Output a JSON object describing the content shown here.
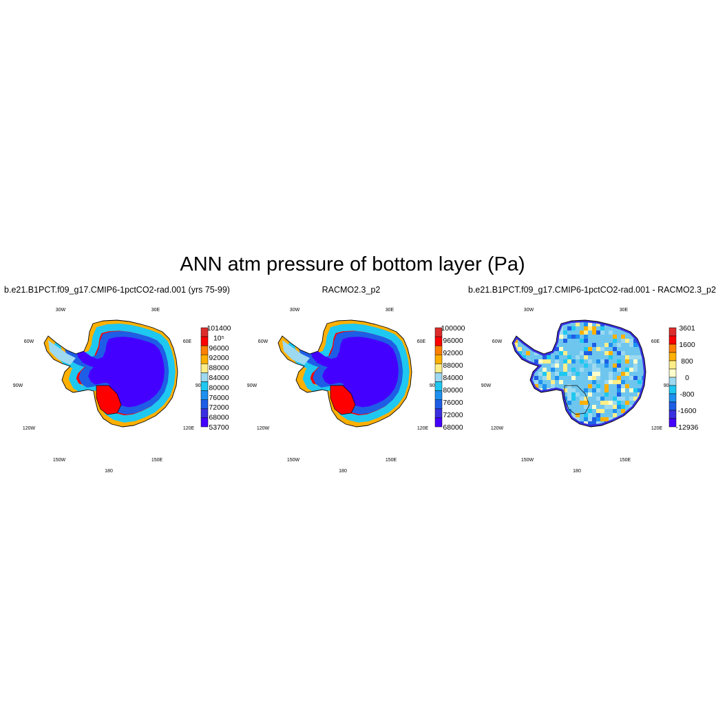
{
  "title": "ANN atm pressure of bottom layer (Pa)",
  "panels": [
    {
      "title": "b.e21.B1PCT.f09_g17.CMIP6-1pctCO2-rad.001 (yrs 75-99)",
      "kind": "field",
      "colorbar": {
        "colors": [
          "#dd2c2c",
          "#ff0000",
          "#ff7f00",
          "#ffb000",
          "#ffee88",
          "#9dd9f0",
          "#1ec8f0",
          "#1e90f0",
          "#1e5ee6",
          "#3a2fe0",
          "#4400ff"
        ],
        "labels": [
          "101400",
          "10⁵",
          "96000",
          "92000",
          "88000",
          "84000",
          "80000",
          "76000",
          "72000",
          "68000",
          "53700"
        ]
      }
    },
    {
      "title": "RACMO2.3_p2",
      "kind": "field",
      "colorbar": {
        "colors": [
          "#dd2c2c",
          "#ff0000",
          "#ff7f00",
          "#ffb000",
          "#ffee88",
          "#9dd9f0",
          "#1ec8f0",
          "#1e90f0",
          "#1e5ee6",
          "#3a2fe0",
          "#4400ff"
        ],
        "labels": [
          "100000",
          "96000",
          "92000",
          "88000",
          "84000",
          "80000",
          "76000",
          "72000",
          "68000"
        ]
      }
    },
    {
      "title": "b.e21.B1PCT.f09_g17.CMIP6-1pctCO2-rad.001 - RACMO2.3_p2",
      "kind": "difference",
      "colorbar": {
        "colors": [
          "#dd2c2c",
          "#ff0000",
          "#ff7f00",
          "#ffb000",
          "#ffee88",
          "#ffffcc",
          "#9dd9f0",
          "#1ec8f0",
          "#1e90f0",
          "#1e5ee6",
          "#3a2fe0",
          "#4400ff"
        ],
        "labels": [
          "3601",
          "1600",
          "800",
          "0",
          "-800",
          "-1600",
          "-12936"
        ]
      }
    }
  ],
  "map_labels": {
    "lon_30w": "30W",
    "lon_30e": "30E",
    "lon_60w": "60W",
    "lon_60e": "60E",
    "lon_90w": "90W",
    "lon_90e": "90E",
    "lon_120w": "120W",
    "lon_120e": "120E",
    "lon_150w": "150W",
    "lon_150e": "150E",
    "lon_180": "180"
  }
}
